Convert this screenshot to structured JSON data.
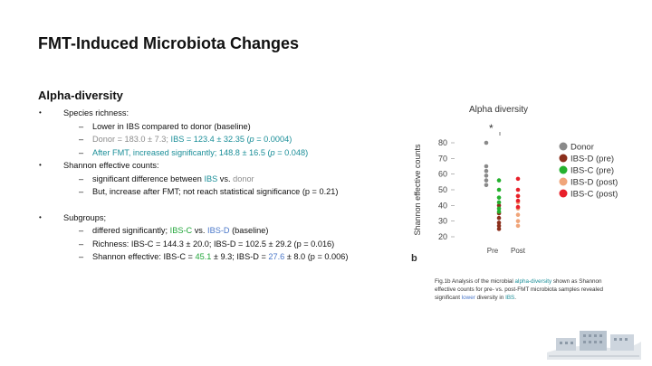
{
  "slide": {
    "title": "FMT-Induced Microbiota Changes"
  },
  "section": {
    "heading": "Alpha-diversity"
  },
  "bullets": {
    "b1": "Species richness:",
    "b1s1": "Lower in IBS compared to donor (baseline)",
    "b1s2": {
      "p1": "Donor = 183.0 ± 7.3; ",
      "p2": "IBS = 123.4 ± 32.35 (",
      "p3": "p",
      "p4": " = 0.0004)"
    },
    "b1s3": {
      "p1": "After FMT, increased significantly; ",
      "p2": "148.8 ± 16.5 (",
      "p3": "p",
      "p4": " = 0.048)"
    },
    "b2": "Shannon effective counts:",
    "b2s1": {
      "p1": "significant difference between ",
      "p2": "IBS",
      "p3": " vs. ",
      "p4": "donor"
    },
    "b2s2": "But, increase after FMT; not reach statistical significance (p = 0.21)",
    "b3": "Subgroups;",
    "b3s1": {
      "p1": "differed significantly; ",
      "p2": "IBS-C",
      "p3": " vs. ",
      "p4": "IBS-D",
      "p5": " (baseline)"
    },
    "b3s2": "Richness: IBS-C = 144.3 ± 20.0; IBS-D = 102.5 ± 29.2 (p = 0.016)",
    "b3s3": {
      "p1": "Shannon effective: IBS-C = ",
      "p2": "45.1",
      "p3": " ± 9.3; IBS-D = ",
      "p4": "27.6",
      "p5": " ± 8.0 (p = 0.006)"
    }
  },
  "caption": {
    "p1": "Fig.1b Analysis of the microbial ",
    "p2": "alpha-diversity",
    "p3": " shown as Shannon effective counts for pre- vs. post-FMT microbiota samples revealed significant ",
    "p4": "lower",
    "p5": " diversity in ",
    "p6": "IBS",
    "p7": "."
  },
  "chart_data": {
    "type": "scatter",
    "title": "Alpha diversity",
    "ylabel": "Shannon effective counts",
    "panel_label": "b",
    "significance": "*",
    "categories": [
      "Pre",
      "Post"
    ],
    "ylim": [
      20,
      80
    ],
    "yticks": [
      20,
      30,
      40,
      50,
      60,
      70,
      80
    ],
    "legend_position": "right",
    "series": [
      {
        "name": "Donor",
        "color": "#8a8a8a",
        "group": "Pre",
        "offset": -0.16,
        "values": [
          80,
          65,
          62,
          59,
          56,
          53
        ]
      },
      {
        "name": "IBS-D (pre)",
        "color": "#8b2f1c",
        "group": "Pre",
        "offset": 0.16,
        "values": [
          40,
          35,
          32,
          29,
          27,
          25
        ]
      },
      {
        "name": "IBS-C (pre)",
        "color": "#25b12e",
        "group": "Pre",
        "offset": 0.16,
        "values": [
          56,
          50,
          45,
          42,
          38,
          36
        ]
      },
      {
        "name": "IBS-D (post)",
        "color": "#f0a57a",
        "group": "Post",
        "offset": 0,
        "values": [
          46,
          42,
          38,
          34,
          30,
          27
        ]
      },
      {
        "name": "IBS-C (post)",
        "color": "#e8202a",
        "group": "Post",
        "offset": 0,
        "values": [
          57,
          50,
          46,
          43,
          39
        ]
      }
    ]
  }
}
